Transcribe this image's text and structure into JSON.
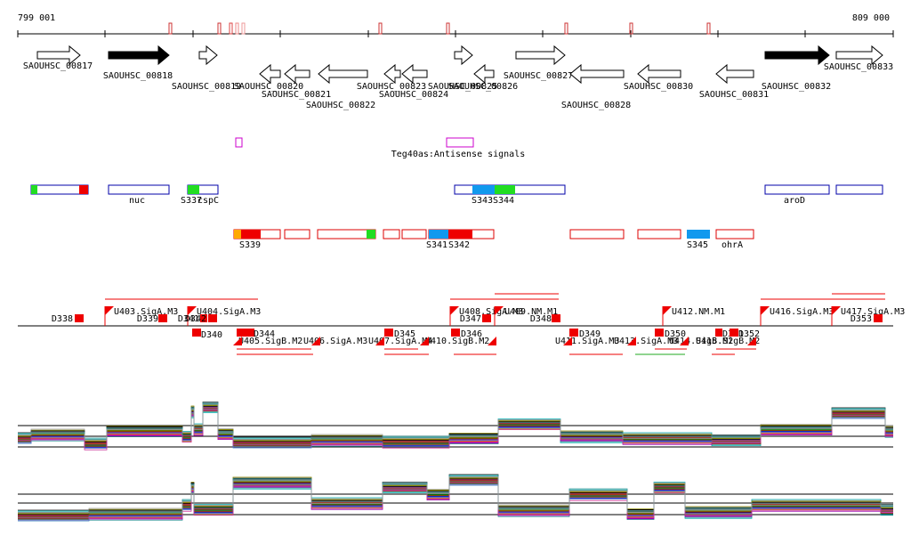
{
  "genome_view": {
    "coord_start": "799 001",
    "coord_end": "809 000",
    "antisense_caption": "Teg40as:Antisense signals"
  },
  "genes": [
    {
      "label": "SAOUHSC_00817",
      "strand": "+",
      "highlighted": false
    },
    {
      "label": "SAOUHSC_00818",
      "strand": "+",
      "highlighted": true
    },
    {
      "label": "SAOUHSC_00819",
      "strand": "+",
      "highlighted": false
    },
    {
      "label": "SAOUHSC_00820",
      "strand": "-",
      "highlighted": false
    },
    {
      "label": "SAOUHSC_00821",
      "strand": "-",
      "highlighted": false
    },
    {
      "label": "SAOUHSC_00822",
      "strand": "-",
      "highlighted": false
    },
    {
      "label": "SAOUHSC_00823",
      "strand": "-",
      "highlighted": false
    },
    {
      "label": "SAOUHSC_00824",
      "strand": "-",
      "highlighted": false
    },
    {
      "label": "SAOUHSC_00825",
      "strand": "+",
      "highlighted": false
    },
    {
      "label": "SAOUHSC_00826",
      "strand": "-",
      "highlighted": false
    },
    {
      "label": "SAOUHSC_00827",
      "strand": "+",
      "highlighted": false
    },
    {
      "label": "SAOUHSC_00828",
      "strand": "-",
      "highlighted": false
    },
    {
      "label": "SAOUHSC_00830",
      "strand": "-",
      "highlighted": false
    },
    {
      "label": "SAOUHSC_00831",
      "strand": "-",
      "highlighted": false
    },
    {
      "label": "SAOUHSC_00832",
      "strand": "+",
      "highlighted": true
    },
    {
      "label": "SAOUHSC_00833",
      "strand": "+",
      "highlighted": false
    }
  ],
  "plus_segments": {
    "labels": [
      "nuc",
      "S337",
      "cspC",
      "S343",
      "S344",
      "aroD"
    ]
  },
  "minus_segments": {
    "labels": [
      "S339",
      "S341",
      "S342",
      "S345",
      "ohrA"
    ]
  },
  "upshifts": {
    "labels": [
      "U403.SigA.M3",
      "U404.SigA.M3",
      "U408.SigA.M3",
      "U409.NM.M1",
      "U412.NM.M1",
      "U416.SigA.M3",
      "U417.SigA.M3"
    ]
  },
  "downshifts_top": {
    "labels": [
      "D338",
      "D339",
      "D341",
      "D342",
      "D347",
      "D348",
      "D353"
    ]
  },
  "lower_shifts": {
    "labels": [
      "D340",
      "U405.SigB.M2",
      "D344",
      "U406.SigA.M3",
      "U407.SigA.M4",
      "D345",
      "U410.SigB.M2",
      "D346",
      "U411.SigA.M3",
      "D349",
      "U413.SigA.M3",
      "D350",
      "U414.SigB.M2",
      "U415.SigB.M2",
      "D351",
      "D352"
    ]
  },
  "colors": {
    "gene_outline": "#000000",
    "segment_outline": "#0000aa",
    "minus_outline": "#dd0000",
    "red": "#ee0000",
    "green": "#22dd22",
    "blue": "#1199ee",
    "orange": "#ffaa00",
    "magenta": "#cc00cc"
  }
}
